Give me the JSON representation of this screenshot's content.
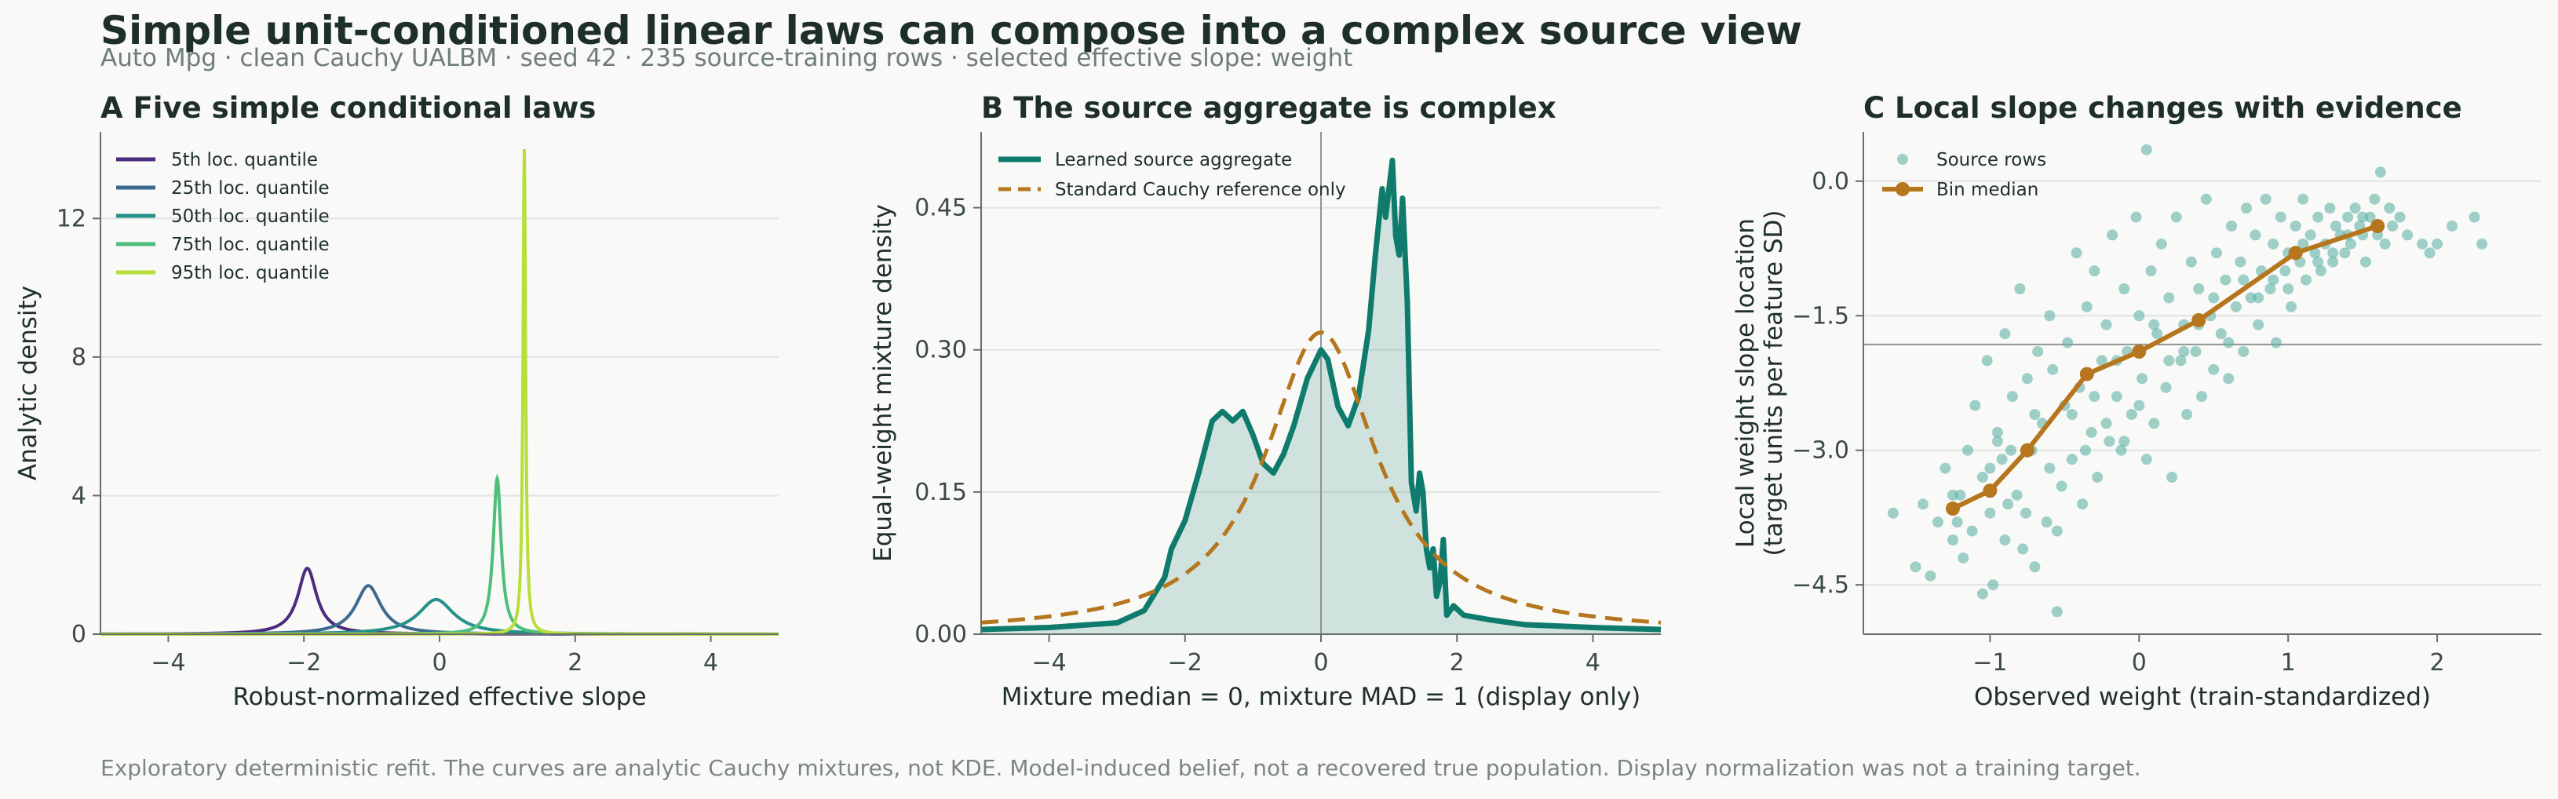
{
  "header": {
    "title": "Simple unit-conditioned linear laws can compose into a complex source view",
    "subtitle": "Auto Mpg · clean Cauchy UALBM · seed 42 · 235 source-training rows · selected effective slope: weight",
    "footnote": "Exploratory deterministic refit. The curves are analytic Cauchy mixtures, not KDE. Model-induced belief, not a recovered true population. Display normalization was not a training target."
  },
  "colors": {
    "teal": "#0f7b6c",
    "orange": "#b5761d",
    "scatter": "#5fb3a6",
    "quantiles": [
      "#4b2c7f",
      "#3c6a8e",
      "#26918a",
      "#4dbe7b",
      "#b8de3a"
    ]
  },
  "chart_data": [
    {
      "type": "line",
      "panel": "A",
      "title": "A  Five simple conditional laws",
      "xlabel": "Robust-normalized effective slope",
      "ylabel": "Analytic density",
      "xlim": [
        -5,
        5
      ],
      "ylim": [
        0,
        14.5
      ],
      "xticks": [
        -4,
        -2,
        0,
        2,
        4
      ],
      "xtick_labels": [
        "−4",
        "−2",
        "0",
        "2",
        "4"
      ],
      "yticks": [
        0,
        4,
        8,
        12
      ],
      "ytick_labels": [
        "0",
        "4",
        "8",
        "12"
      ],
      "legend": "top-left",
      "grid": "horizontal",
      "series": [
        {
          "name": "5th loc. quantile",
          "location": -1.95,
          "peak": 1.9
        },
        {
          "name": "25th loc. quantile",
          "location": -1.05,
          "peak": 1.4
        },
        {
          "name": "50th loc. quantile",
          "location": -0.05,
          "peak": 1.0
        },
        {
          "name": "75th loc. quantile",
          "location": 0.85,
          "peak": 4.5
        },
        {
          "name": "95th loc. quantile",
          "location": 1.25,
          "peak": 14.0
        }
      ]
    },
    {
      "type": "area",
      "panel": "B",
      "title": "B  The source aggregate is complex",
      "xlabel": "Mixture median = 0, mixture MAD = 1 (display only)",
      "ylabel": "Equal-weight mixture density",
      "xlim": [
        -5,
        5
      ],
      "ylim": [
        0,
        0.53
      ],
      "xticks": [
        -4,
        -2,
        0,
        2,
        4
      ],
      "xtick_labels": [
        "−4",
        "−2",
        "0",
        "2",
        "4"
      ],
      "yticks": [
        0,
        0.15,
        0.3,
        0.45
      ],
      "ytick_labels": [
        "0.00",
        "0.15",
        "0.30",
        "0.45"
      ],
      "vline_x": 0,
      "legend": "top-left",
      "grid": "horizontal",
      "series": [
        {
          "name": "Learned source aggregate",
          "x": [
            -5,
            -4,
            -3,
            -2.6,
            -2.3,
            -2.2,
            -2.0,
            -1.8,
            -1.6,
            -1.45,
            -1.3,
            -1.15,
            -1.0,
            -0.85,
            -0.7,
            -0.55,
            -0.4,
            -0.2,
            0.0,
            0.1,
            0.25,
            0.4,
            0.55,
            0.7,
            0.8,
            0.9,
            0.95,
            1.0,
            1.05,
            1.1,
            1.15,
            1.2,
            1.27,
            1.33,
            1.4,
            1.45,
            1.5,
            1.55,
            1.6,
            1.65,
            1.7,
            1.75,
            1.8,
            1.85,
            1.95,
            2.1,
            2.5,
            3,
            4,
            5
          ],
          "y": [
            0.005,
            0.007,
            0.012,
            0.025,
            0.06,
            0.09,
            0.12,
            0.17,
            0.225,
            0.235,
            0.225,
            0.235,
            0.21,
            0.18,
            0.17,
            0.19,
            0.22,
            0.27,
            0.3,
            0.29,
            0.24,
            0.22,
            0.25,
            0.32,
            0.4,
            0.47,
            0.44,
            0.47,
            0.5,
            0.42,
            0.4,
            0.46,
            0.35,
            0.16,
            0.13,
            0.17,
            0.15,
            0.09,
            0.07,
            0.09,
            0.04,
            0.055,
            0.1,
            0.02,
            0.03,
            0.02,
            0.015,
            0.01,
            0.007,
            0.005
          ]
        },
        {
          "name": "Standard Cauchy reference only",
          "location": 0,
          "scale": 1,
          "style": "dashed"
        }
      ]
    },
    {
      "type": "scatter",
      "panel": "C",
      "title": "C  Local slope changes with evidence",
      "xlabel": "Observed weight (train-standardized)",
      "ylabel": "Local weight slope location (target units per feature SD)",
      "ylabel_lines": [
        "Local weight slope location",
        "(target units per feature SD)"
      ],
      "xlim": [
        -1.85,
        2.7
      ],
      "ylim": [
        -5.05,
        0.55
      ],
      "xticks": [
        -1,
        0,
        1,
        2
      ],
      "xtick_labels": [
        "−1",
        "0",
        "1",
        "2"
      ],
      "yticks": [
        0,
        -1.5,
        -3,
        -4.5
      ],
      "ytick_labels": [
        "0.0",
        "−1.5",
        "−3.0",
        "−4.5"
      ],
      "hline_y": -1.82,
      "legend": "top-left",
      "grid": "horizontal",
      "series": [
        {
          "name": "Source rows",
          "points": [
            [
              -1.65,
              -3.7
            ],
            [
              -1.5,
              -4.3
            ],
            [
              -1.45,
              -3.6
            ],
            [
              -1.4,
              -4.4
            ],
            [
              -1.35,
              -3.8
            ],
            [
              -1.3,
              -3.2
            ],
            [
              -1.25,
              -4.0
            ],
            [
              -1.2,
              -3.5
            ],
            [
              -1.18,
              -4.2
            ],
            [
              -1.15,
              -3.0
            ],
            [
              -1.12,
              -3.9
            ],
            [
              -1.1,
              -2.5
            ],
            [
              -1.05,
              -4.6
            ],
            [
              -1.05,
              -3.3
            ],
            [
              -1.02,
              -2.0
            ],
            [
              -1.0,
              -3.7
            ],
            [
              -0.98,
              -4.5
            ],
            [
              -0.95,
              -2.8
            ],
            [
              -0.92,
              -3.1
            ],
            [
              -0.9,
              -4.0
            ],
            [
              -0.9,
              -1.7
            ],
            [
              -0.85,
              -2.4
            ],
            [
              -0.82,
              -3.5
            ],
            [
              -0.8,
              -1.2
            ],
            [
              -0.78,
              -4.1
            ],
            [
              -0.75,
              -2.2
            ],
            [
              -0.72,
              -3.0
            ],
            [
              -0.7,
              -4.3
            ],
            [
              -0.68,
              -1.9
            ],
            [
              -0.65,
              -2.7
            ],
            [
              -0.62,
              -3.8
            ],
            [
              -0.6,
              -1.5
            ],
            [
              -0.58,
              -2.1
            ],
            [
              -0.55,
              -4.8
            ],
            [
              -0.52,
              -3.4
            ],
            [
              -0.5,
              -2.5
            ],
            [
              -0.48,
              -1.8
            ],
            [
              -0.45,
              -3.1
            ],
            [
              -0.42,
              -0.8
            ],
            [
              -0.4,
              -2.3
            ],
            [
              -0.38,
              -3.6
            ],
            [
              -0.35,
              -1.4
            ],
            [
              -0.32,
              -2.8
            ],
            [
              -0.3,
              -1.0
            ],
            [
              -0.28,
              -3.3
            ],
            [
              -0.25,
              -2.0
            ],
            [
              -0.22,
              -1.6
            ],
            [
              -0.2,
              -2.9
            ],
            [
              -0.18,
              -0.6
            ],
            [
              -0.15,
              -2.4
            ],
            [
              -0.12,
              -3.0
            ],
            [
              -0.1,
              -1.2
            ],
            [
              -0.08,
              -1.9
            ],
            [
              -0.05,
              -2.6
            ],
            [
              -0.02,
              -0.4
            ],
            [
              0.0,
              -1.5
            ],
            [
              0.02,
              -2.2
            ],
            [
              0.05,
              -3.1
            ],
            [
              0.05,
              0.35
            ],
            [
              0.08,
              -1.0
            ],
            [
              0.1,
              -2.7
            ],
            [
              0.12,
              -1.7
            ],
            [
              0.15,
              -0.7
            ],
            [
              0.18,
              -2.3
            ],
            [
              0.2,
              -1.3
            ],
            [
              0.22,
              -3.3
            ],
            [
              0.25,
              -0.4
            ],
            [
              0.28,
              -2.0
            ],
            [
              0.3,
              -1.6
            ],
            [
              0.32,
              -2.6
            ],
            [
              0.35,
              -0.9
            ],
            [
              0.38,
              -1.9
            ],
            [
              0.4,
              -1.2
            ],
            [
              0.42,
              -2.4
            ],
            [
              0.45,
              -0.2
            ],
            [
              0.48,
              -1.5
            ],
            [
              0.5,
              -2.1
            ],
            [
              0.52,
              -0.8
            ],
            [
              0.55,
              -1.7
            ],
            [
              0.58,
              -1.1
            ],
            [
              0.6,
              -2.2
            ],
            [
              0.62,
              -0.5
            ],
            [
              0.65,
              -1.4
            ],
            [
              0.68,
              -0.9
            ],
            [
              0.7,
              -1.9
            ],
            [
              0.72,
              -0.3
            ],
            [
              0.75,
              -1.3
            ],
            [
              0.78,
              -0.6
            ],
            [
              0.8,
              -1.6
            ],
            [
              0.82,
              -1.0
            ],
            [
              0.85,
              -0.2
            ],
            [
              0.88,
              -1.2
            ],
            [
              0.9,
              -0.7
            ],
            [
              0.92,
              -1.8
            ],
            [
              0.95,
              -0.4
            ],
            [
              0.98,
              -1.0
            ],
            [
              1.0,
              -0.8
            ],
            [
              1.02,
              -1.4
            ],
            [
              1.05,
              -0.5
            ],
            [
              1.08,
              -0.9
            ],
            [
              1.1,
              -0.2
            ],
            [
              1.12,
              -1.1
            ],
            [
              1.15,
              -0.6
            ],
            [
              1.18,
              -0.8
            ],
            [
              1.2,
              -0.4
            ],
            [
              1.22,
              -1.0
            ],
            [
              1.25,
              -0.7
            ],
            [
              1.28,
              -0.3
            ],
            [
              1.3,
              -0.9
            ],
            [
              1.32,
              -0.5
            ],
            [
              1.35,
              -0.6
            ],
            [
              1.38,
              -0.8
            ],
            [
              1.4,
              -0.4
            ],
            [
              1.42,
              -0.7
            ],
            [
              1.45,
              -0.3
            ],
            [
              1.48,
              -0.5
            ],
            [
              1.5,
              -0.6
            ],
            [
              1.52,
              -0.9
            ],
            [
              1.55,
              -0.4
            ],
            [
              1.58,
              -0.2
            ],
            [
              1.6,
              -0.6
            ],
            [
              1.62,
              0.1
            ],
            [
              1.65,
              -0.7
            ],
            [
              1.68,
              -0.3
            ],
            [
              1.7,
              -0.5
            ],
            [
              1.75,
              -0.4
            ],
            [
              1.8,
              -0.6
            ],
            [
              1.9,
              -0.7
            ],
            [
              1.95,
              -0.8
            ],
            [
              2.0,
              -0.7
            ],
            [
              2.1,
              -0.5
            ],
            [
              2.25,
              -0.4
            ],
            [
              2.3,
              -0.7
            ],
            [
              -1.25,
              -3.5
            ],
            [
              -1.22,
              -3.8
            ],
            [
              -1.0,
              -3.2
            ],
            [
              -0.95,
              -2.9
            ],
            [
              -0.88,
              -3.6
            ],
            [
              -0.86,
              -3.0
            ],
            [
              -0.76,
              -3.7
            ],
            [
              -0.7,
              -2.6
            ],
            [
              -0.6,
              -3.2
            ],
            [
              -0.55,
              -3.9
            ],
            [
              -0.45,
              -2.6
            ],
            [
              -0.36,
              -3.0
            ],
            [
              -0.3,
              -2.4
            ],
            [
              -0.22,
              -2.7
            ],
            [
              -0.15,
              -2.0
            ],
            [
              -0.1,
              -2.9
            ],
            [
              0.0,
              -2.5
            ],
            [
              0.1,
              -1.6
            ],
            [
              0.2,
              -2.0
            ],
            [
              0.3,
              -1.9
            ],
            [
              0.4,
              -1.6
            ],
            [
              0.5,
              -1.3
            ],
            [
              0.6,
              -1.8
            ],
            [
              0.7,
              -1.1
            ],
            [
              0.8,
              -1.3
            ],
            [
              0.9,
              -1.1
            ],
            [
              1.0,
              -1.2
            ],
            [
              1.1,
              -0.7
            ],
            [
              1.2,
              -0.9
            ],
            [
              1.3,
              -0.8
            ],
            [
              1.4,
              -0.6
            ],
            [
              1.5,
              -0.4
            ]
          ]
        },
        {
          "name": "Bin median",
          "points": [
            [
              -1.25,
              -3.65
            ],
            [
              -1.0,
              -3.45
            ],
            [
              -0.75,
              -3.0
            ],
            [
              -0.35,
              -2.15
            ],
            [
              0.0,
              -1.9
            ],
            [
              0.4,
              -1.55
            ],
            [
              1.05,
              -0.8
            ],
            [
              1.6,
              -0.5
            ]
          ]
        }
      ]
    }
  ]
}
